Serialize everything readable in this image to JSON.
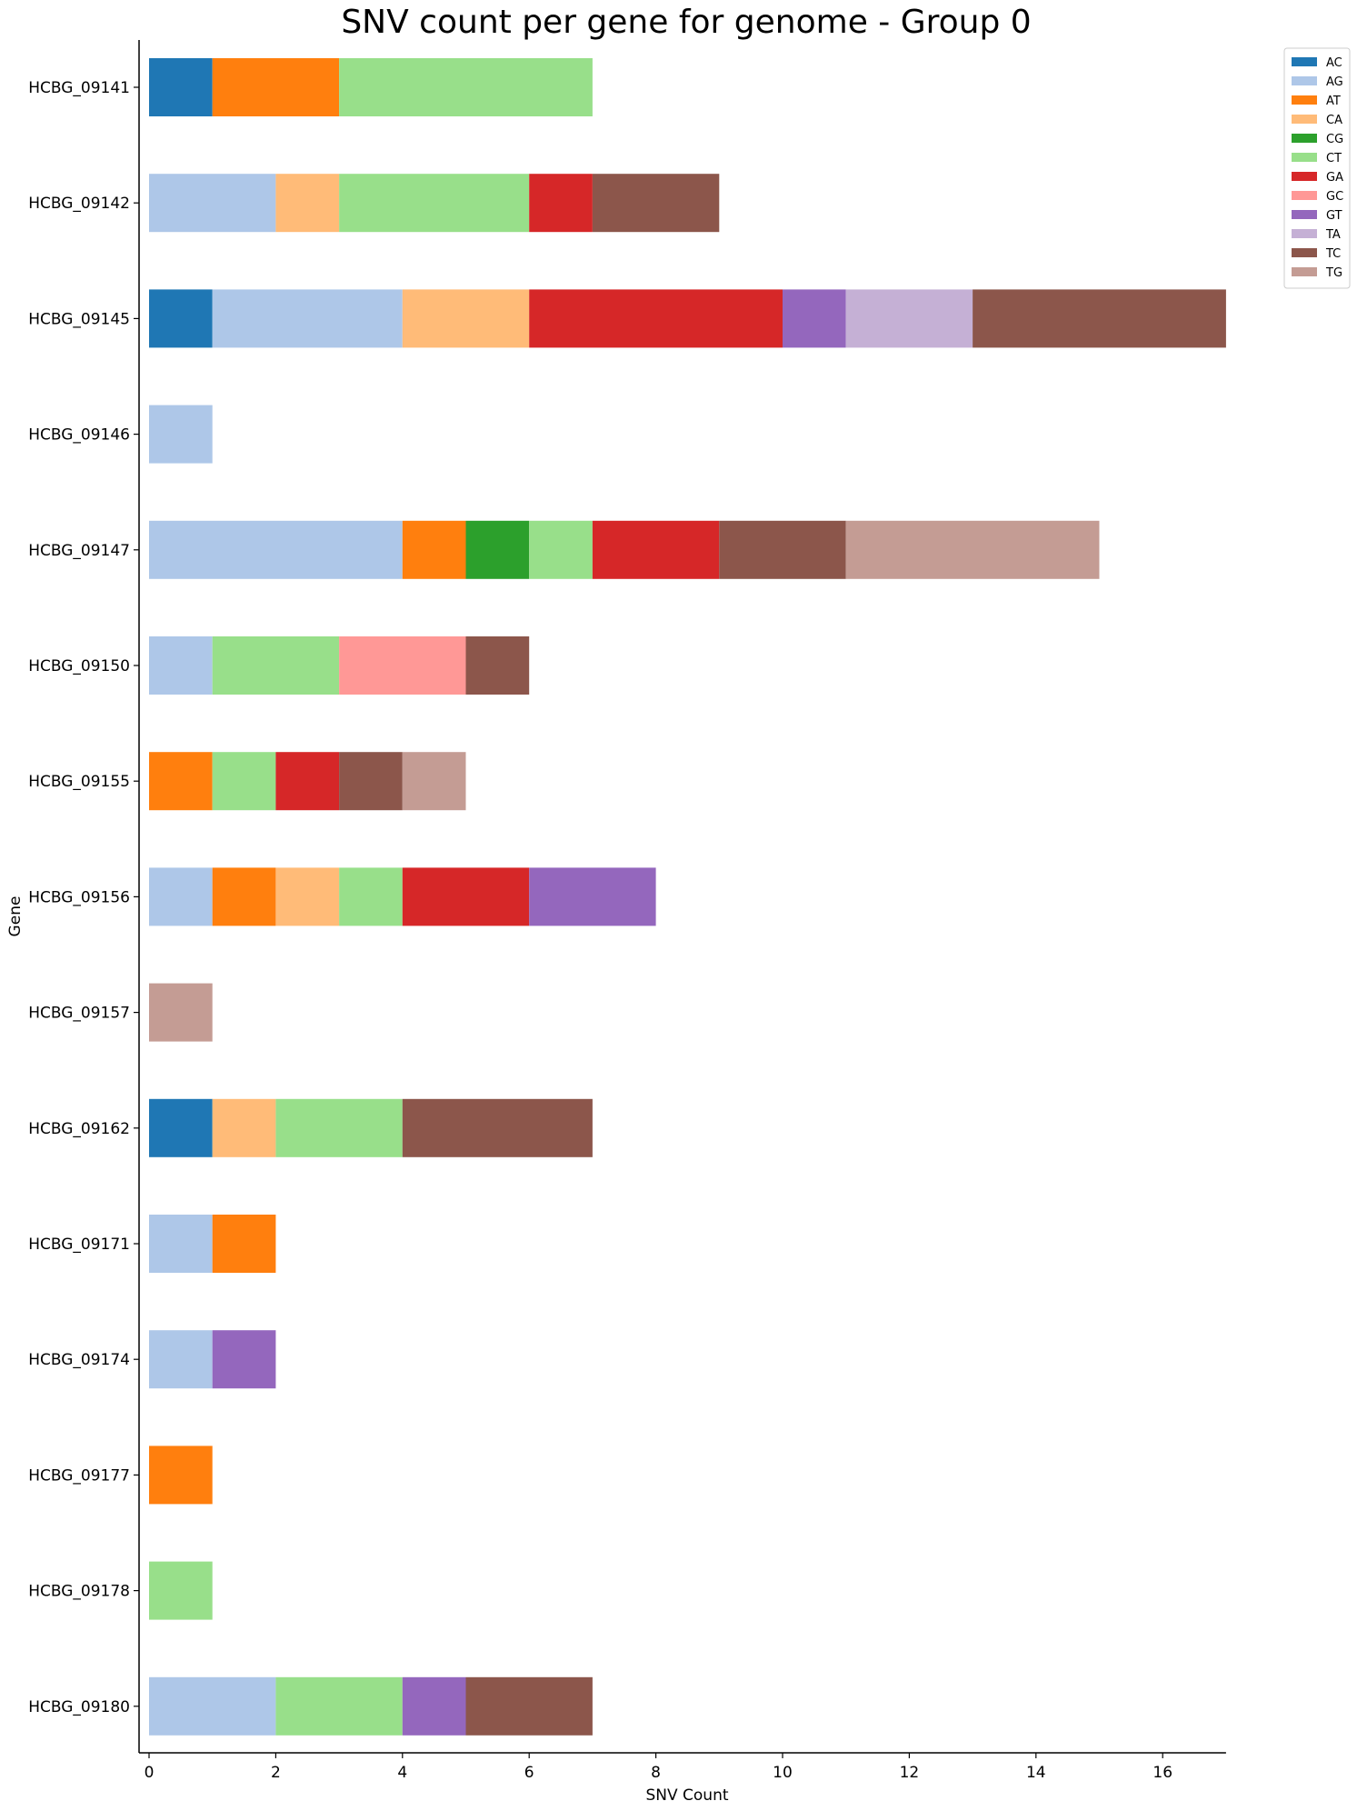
{
  "chart_data": {
    "type": "bar",
    "orientation": "horizontal",
    "stacked": true,
    "title": "SNV count per gene for genome - Group 0",
    "xlabel": "SNV Count",
    "ylabel": "Gene",
    "xlim": [
      0,
      17
    ],
    "x_ticks": [
      0,
      2,
      4,
      6,
      8,
      10,
      12,
      14,
      16
    ],
    "grid": false,
    "legend_position": "top-right, outside plot",
    "categories": [
      "HCBG_09141",
      "HCBG_09142",
      "HCBG_09145",
      "HCBG_09146",
      "HCBG_09147",
      "HCBG_09150",
      "HCBG_09155",
      "HCBG_09156",
      "HCBG_09157",
      "HCBG_09162",
      "HCBG_09171",
      "HCBG_09174",
      "HCBG_09177",
      "HCBG_09178",
      "HCBG_09180"
    ],
    "series": [
      {
        "name": "AC",
        "color": "#1f77b4",
        "values": [
          1,
          0,
          1,
          0,
          0,
          0,
          0,
          0,
          0,
          1,
          0,
          0,
          0,
          0,
          0
        ]
      },
      {
        "name": "AG",
        "color": "#aec7e8",
        "values": [
          0,
          2,
          3,
          1,
          4,
          1,
          0,
          1,
          0,
          0,
          1,
          1,
          0,
          0,
          2
        ]
      },
      {
        "name": "AT",
        "color": "#ff7f0e",
        "values": [
          2,
          0,
          0,
          0,
          1,
          0,
          1,
          1,
          0,
          0,
          1,
          0,
          1,
          0,
          0
        ]
      },
      {
        "name": "CA",
        "color": "#ffbb78",
        "values": [
          0,
          1,
          2,
          0,
          0,
          0,
          0,
          1,
          0,
          1,
          0,
          0,
          0,
          0,
          0
        ]
      },
      {
        "name": "CG",
        "color": "#2ca02c",
        "values": [
          0,
          0,
          0,
          0,
          1,
          0,
          0,
          0,
          0,
          0,
          0,
          0,
          0,
          0,
          0
        ]
      },
      {
        "name": "CT",
        "color": "#98df8a",
        "values": [
          4,
          3,
          0,
          0,
          1,
          2,
          1,
          1,
          0,
          2,
          0,
          0,
          0,
          1,
          2
        ]
      },
      {
        "name": "GA",
        "color": "#d62728",
        "values": [
          0,
          1,
          4,
          0,
          2,
          0,
          1,
          2,
          0,
          0,
          0,
          0,
          0,
          0,
          0
        ]
      },
      {
        "name": "GC",
        "color": "#ff9896",
        "values": [
          0,
          0,
          0,
          0,
          0,
          2,
          0,
          0,
          0,
          0,
          0,
          0,
          0,
          0,
          0
        ]
      },
      {
        "name": "GT",
        "color": "#9467bd",
        "values": [
          0,
          0,
          1,
          0,
          0,
          0,
          0,
          2,
          0,
          0,
          0,
          1,
          0,
          0,
          1
        ]
      },
      {
        "name": "TA",
        "color": "#c5b0d5",
        "values": [
          0,
          0,
          2,
          0,
          0,
          0,
          0,
          0,
          0,
          0,
          0,
          0,
          0,
          0,
          0
        ]
      },
      {
        "name": "TC",
        "color": "#8c564b",
        "values": [
          0,
          2,
          4,
          0,
          2,
          1,
          1,
          0,
          0,
          3,
          0,
          0,
          0,
          0,
          2
        ]
      },
      {
        "name": "TG",
        "color": "#c49c94",
        "values": [
          0,
          0,
          0,
          0,
          4,
          0,
          1,
          0,
          1,
          0,
          0,
          0,
          0,
          0,
          0
        ]
      }
    ]
  }
}
